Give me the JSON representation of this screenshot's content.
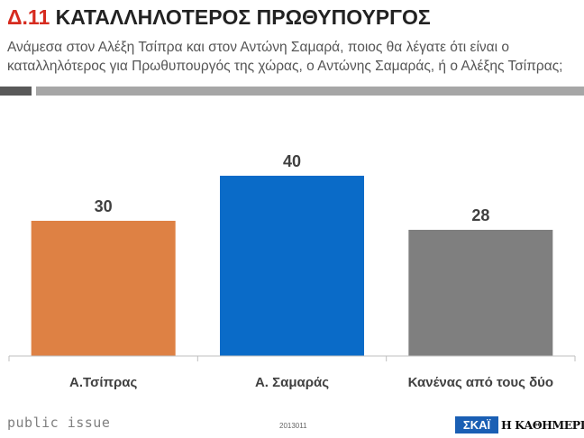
{
  "header": {
    "code": "Δ.11",
    "title": "ΚΑΤΑΛΛΗΛΟΤΕΡΟΣ ΠΡΩΘΥΠΟΥΡΓΟΣ",
    "subtitle": "Ανάμεσα στον Αλέξη Τσίπρα και στον Αντώνη Σαμαρά, ποιος θα λέγατε ότι είναι ο καταλληλότερος για Πρωθυπουργός της χώρας, ο Αντώνης Σαμαράς, ή ο Αλέξης Τσίπρας;"
  },
  "chart_data": {
    "type": "bar",
    "categories": [
      "Α.Τσίπρας",
      "Α. Σαμαράς",
      "Κανένας από τους δύο"
    ],
    "values": [
      30,
      40,
      28
    ],
    "colors": [
      "#de8144",
      "#0a6bc8",
      "#7f7f7f"
    ],
    "data_labels": [
      "30",
      "40",
      "28"
    ],
    "ylim": [
      0,
      48
    ],
    "grid": false,
    "legend": "none"
  },
  "footer": {
    "brand_left": "public issue",
    "code": "2013011",
    "logo_skai": "ΣΚΑΪ",
    "logo_kathimerini": "Η ΚΑΘΗΜΕΡΙΝΗ"
  }
}
